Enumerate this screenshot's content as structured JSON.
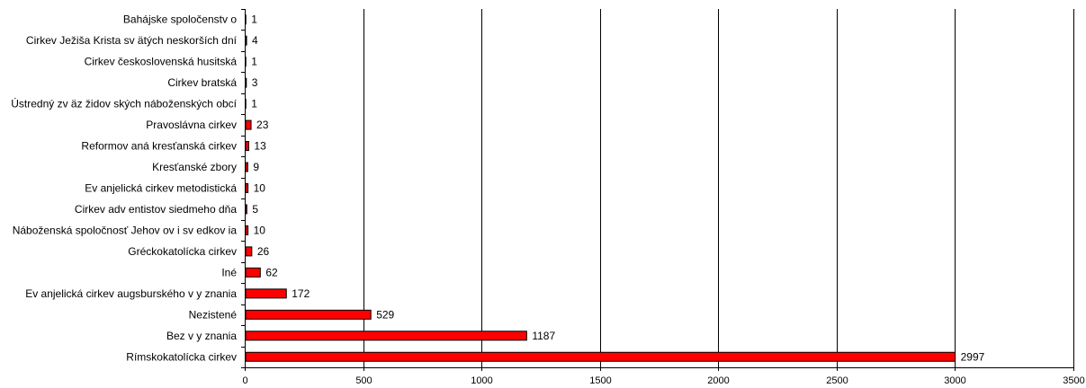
{
  "chart_data": {
    "type": "bar",
    "orientation": "horizontal",
    "title": "",
    "xlabel": "",
    "ylabel": "",
    "categories": [
      "Bahájske spoločenstv o",
      "Cirkev  Ježiša Krista sv ätých neskorších dní",
      "Cirkev  československá husitská",
      "Cirkev  bratská",
      "Ústredný  zv äz židov ských náboženských obcí",
      "Pravoslávna cirkev",
      "Reformov aná kresťanská cirkev",
      "Kresťanské zbory",
      "Ev anjelická cirkev  metodistická",
      "Cirkev  adv entistov  siedmeho dňa",
      "Náboženská spoločnosť Jehov ov i sv edkov ia",
      "Gréckokatolícka cirkev",
      "Iné",
      "Ev anjelická cirkev  augsburského v y znania",
      "Nezistené",
      "Bez v y znania",
      "Rímskokatolícka cirkev"
    ],
    "values": [
      1,
      4,
      1,
      3,
      1,
      23,
      13,
      9,
      10,
      5,
      10,
      26,
      62,
      172,
      529,
      1187,
      2997
    ],
    "data_labels": [
      "1",
      "4",
      "1",
      "3",
      "1",
      "23",
      "13",
      "9",
      "10",
      "5",
      "10",
      "26",
      "62",
      "172",
      "529",
      "1187",
      "2997"
    ],
    "xlim": [
      0,
      3500
    ],
    "x_ticks": [
      0,
      500,
      1000,
      1500,
      2000,
      2500,
      3000,
      3500
    ],
    "x_tick_labels": [
      "0",
      "500",
      "1000",
      "1500",
      "2000",
      "2500",
      "3000",
      "3500"
    ],
    "grid": "vertical",
    "legend": "none",
    "colors": {
      "bar_fill": "#ff0000",
      "bar_stroke": "#000000",
      "grid": "#000000",
      "axis": "#000000",
      "background": "#ffffff"
    }
  }
}
